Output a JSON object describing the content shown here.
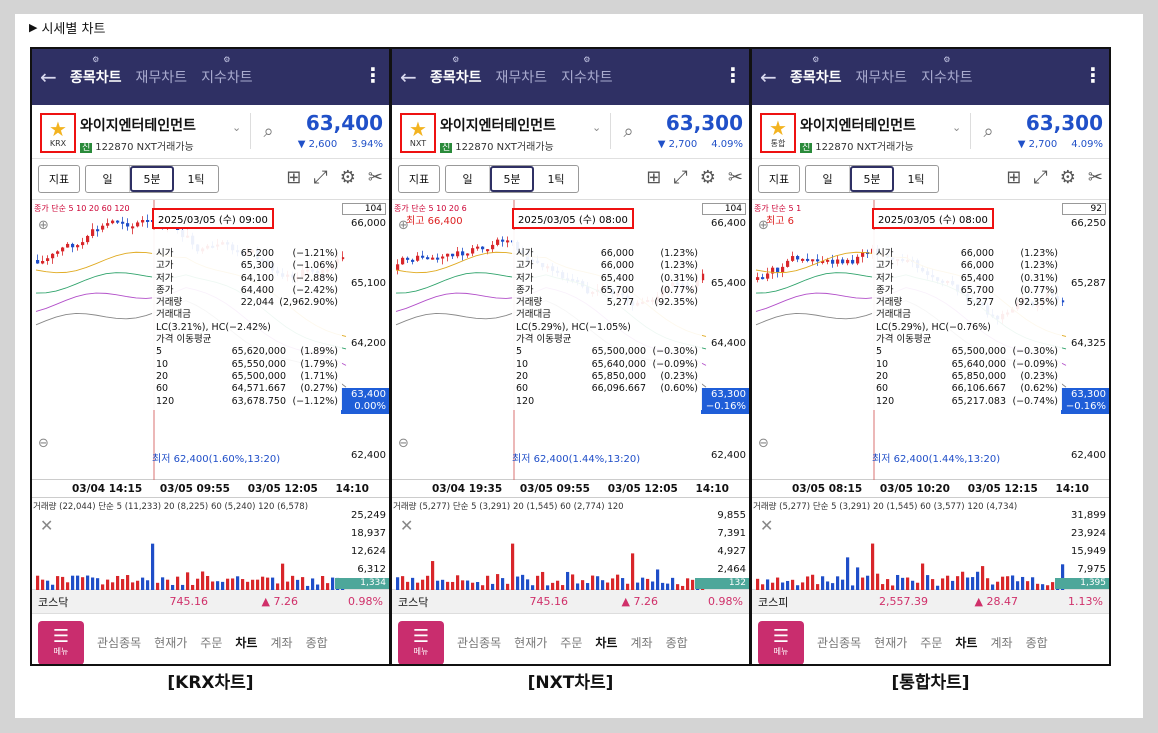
{
  "section_title": "시세별 차트",
  "section_marker": "▶",
  "nav_tabs": [
    "종목차트",
    "재무차트",
    "지수차트"
  ],
  "stock_name": "와이지엔터테인먼트",
  "stock_code": "122870",
  "nxt_available": "NXT거래가능",
  "toolbar": {
    "indicator": "지표",
    "day": "일",
    "interval": "5분",
    "tick": "1틱"
  },
  "bottom_nav": {
    "menu": "메뉴",
    "items": [
      "관심종목",
      "현재가",
      "주문",
      "차트",
      "계좌",
      "종합"
    ]
  },
  "panels": [
    {
      "market": "KRX",
      "caption": "[KRX차트]",
      "price": "63,400",
      "change": "▼ 2,600",
      "change_pct": "3.94%",
      "ma_legend": "종가 단순 5 10 20 60 120",
      "price_box": "104",
      "y_labels": [
        "66,000",
        "65,100",
        "64,200",
        "62,400"
      ],
      "cur_tag": [
        "63,400",
        "0.00%"
      ],
      "tooltip": {
        "date": "2025/03/05 (수) 09:00",
        "rows": [
          [
            "시가",
            "65,200",
            "(−1.21%)"
          ],
          [
            "고가",
            "65,300",
            "(−1.06%)"
          ],
          [
            "저가",
            "64,100",
            "(−2.88%)"
          ],
          [
            "종가",
            "64,400",
            "(−2.42%)"
          ],
          [
            "거래량",
            "22,044",
            "(2,962.90%)"
          ]
        ],
        "amount": "거래대금",
        "lchc": "LC(3.21%), HC(−2.42%)",
        "ma_title": "가격 이동평균",
        "ma_rows": [
          [
            "5",
            "65,620,000",
            "(1.89%)"
          ],
          [
            "10",
            "65,550,000",
            "(1.79%)"
          ],
          [
            "20",
            "65,500,000",
            "(1.71%)"
          ],
          [
            "60",
            "64,571.667",
            "(0.27%)"
          ],
          [
            "120",
            "63,678.750",
            "(−1.12%)"
          ]
        ]
      },
      "high_label": "",
      "low_label": "최저 62,400(1.60%,13:20)",
      "x_labels": [
        "03/04 14:15",
        "03/05 09:55",
        "03/05 12:05",
        "14:10"
      ],
      "vol_legend": "거래량 (22,044) 단순 5 (11,233) 20 (8,225) 60 (5,240) 120 (6,578)",
      "vol_labels": [
        "25,249",
        "18,937",
        "12,624",
        "6,312"
      ],
      "vol_cur": "1,334",
      "index": {
        "name": "코스닥",
        "value": "745.16",
        "change": "▲ 7.26",
        "pct": "0.98%"
      }
    },
    {
      "market": "NXT",
      "caption": "[NXT차트]",
      "price": "63,300",
      "change": "▼ 2,700",
      "change_pct": "4.09%",
      "ma_legend": "종가 단순 5 10 20 6",
      "price_box": "104",
      "y_labels": [
        "66,400",
        "65,400",
        "64,400",
        "62,400"
      ],
      "cur_tag": [
        "63,300",
        "−0.16%"
      ],
      "tooltip": {
        "date": "2025/03/05 (수) 08:00",
        "rows": [
          [
            "시가",
            "66,000",
            "(1.23%)"
          ],
          [
            "고가",
            "66,000",
            "(1.23%)"
          ],
          [
            "저가",
            "65,400",
            "(0.31%)"
          ],
          [
            "종가",
            "65,700",
            "(0.77%)"
          ],
          [
            "거래량",
            "5,277",
            "(92.35%)"
          ]
        ],
        "amount": "거래대금",
        "lchc": "LC(5.29%), HC(−1.05%)",
        "ma_title": "가격 이동평균",
        "ma_rows": [
          [
            "5",
            "65,500,000",
            "(−0.30%)"
          ],
          [
            "10",
            "65,640,000",
            "(−0.09%)"
          ],
          [
            "20",
            "65,850,000",
            "(0.23%)"
          ],
          [
            "60",
            "66,096.667",
            "(0.60%)"
          ],
          [
            "120",
            "",
            ""
          ]
        ]
      },
      "high_label": "최고 66,400",
      "low_label": "최저 62,400(1.44%,13:20)",
      "x_labels": [
        "03/04 19:35",
        "03/05 09:55",
        "03/05 12:05",
        "14:10"
      ],
      "vol_legend": "거래량 (5,277) 단순 5 (3,291) 20 (1,545) 60 (2,774) 120",
      "vol_labels": [
        "9,855",
        "7,391",
        "4,927",
        "2,464"
      ],
      "vol_cur": "132",
      "index": {
        "name": "코스닥",
        "value": "745.16",
        "change": "▲ 7.26",
        "pct": "0.98%"
      }
    },
    {
      "market": "통합",
      "caption": "[통합차트]",
      "price": "63,300",
      "change": "▼ 2,700",
      "change_pct": "4.09%",
      "ma_legend": "종가 단순 5 1",
      "price_box": "92",
      "y_labels": [
        "66,250",
        "65,287",
        "64,325",
        "62,400"
      ],
      "cur_tag": [
        "63,300",
        "−0.16%"
      ],
      "tooltip": {
        "date": "2025/03/05 (수) 08:00",
        "rows": [
          [
            "시가",
            "66,000",
            "(1.23%)"
          ],
          [
            "고가",
            "66,000",
            "(1.23%)"
          ],
          [
            "저가",
            "65,400",
            "(0.31%)"
          ],
          [
            "종가",
            "65,700",
            "(0.77%)"
          ],
          [
            "거래량",
            "5,277",
            "(92.35%)"
          ]
        ],
        "amount": "거래대금",
        "lchc": "LC(5.29%), HC(−0.76%)",
        "ma_title": "가격 이동평균",
        "ma_rows": [
          [
            "5",
            "65,500,000",
            "(−0.30%)"
          ],
          [
            "10",
            "65,640,000",
            "(−0.09%)"
          ],
          [
            "20",
            "65,850,000",
            "(0.23%)"
          ],
          [
            "60",
            "66,106.667",
            "(0.62%)"
          ],
          [
            "120",
            "65,217.083",
            "(−0.74%)"
          ]
        ]
      },
      "high_label": "최고 6",
      "low_label": "최저 62,400(1.44%,13:20)",
      "x_labels": [
        "03/05 08:15",
        "03/05 10:20",
        "03/05 12:15",
        "14:10"
      ],
      "vol_legend": "거래량 (5,277) 단순 5 (3,291) 20 (1,545) 60 (3,577) 120 (4,734)",
      "vol_labels": [
        "31,899",
        "23,924",
        "15,949",
        "7,975"
      ],
      "vol_cur": "1,395",
      "index": {
        "name": "코스피",
        "value": "2,557.39",
        "change": "▲ 28.47",
        "pct": "1.13%"
      }
    }
  ],
  "colors": {
    "appbar": "#2f3064",
    "up": "#d8262a",
    "down": "#1f4ec8",
    "highlight": "#e11111",
    "menu": "#c92d6e"
  }
}
